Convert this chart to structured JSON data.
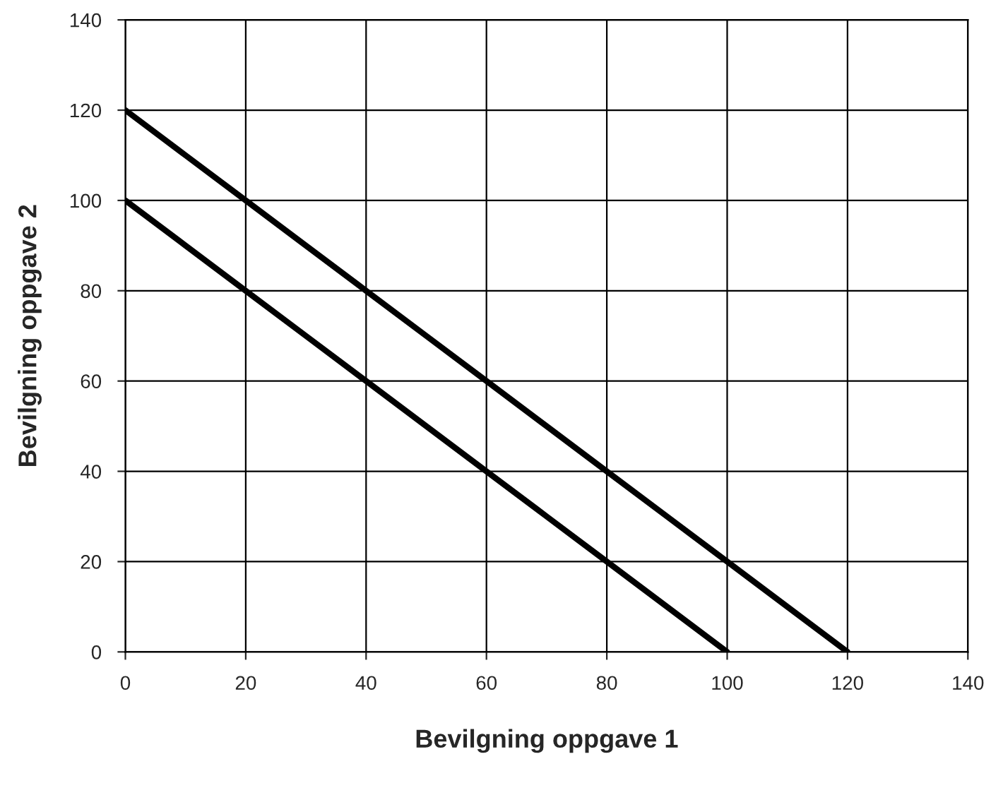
{
  "chart_data": {
    "type": "line",
    "xlabel": "Bevilgning oppgave 1",
    "ylabel": "Bevilgning oppgave 2",
    "series": [
      {
        "color": "#000000",
        "x": [
          0,
          10,
          20,
          30,
          40,
          50,
          60,
          70,
          80,
          90,
          100
        ],
        "values": [
          100,
          90,
          80,
          70,
          60,
          50,
          40,
          30,
          20,
          10,
          0
        ]
      },
      {
        "color": "#000000",
        "x": [
          0,
          10,
          20,
          30,
          40,
          50,
          60,
          70,
          80,
          90,
          100,
          110,
          120
        ],
        "values": [
          120,
          110,
          100,
          90,
          80,
          70,
          60,
          50,
          40,
          30,
          20,
          10,
          0
        ]
      }
    ],
    "xlim": [
      0,
      140
    ],
    "ylim": [
      0,
      140
    ],
    "xticks": [
      0,
      20,
      40,
      60,
      80,
      100,
      120,
      140
    ],
    "yticks": [
      0,
      20,
      40,
      60,
      80,
      100,
      120,
      140
    ],
    "grid": true,
    "marker": "none",
    "line_style": "solid"
  }
}
